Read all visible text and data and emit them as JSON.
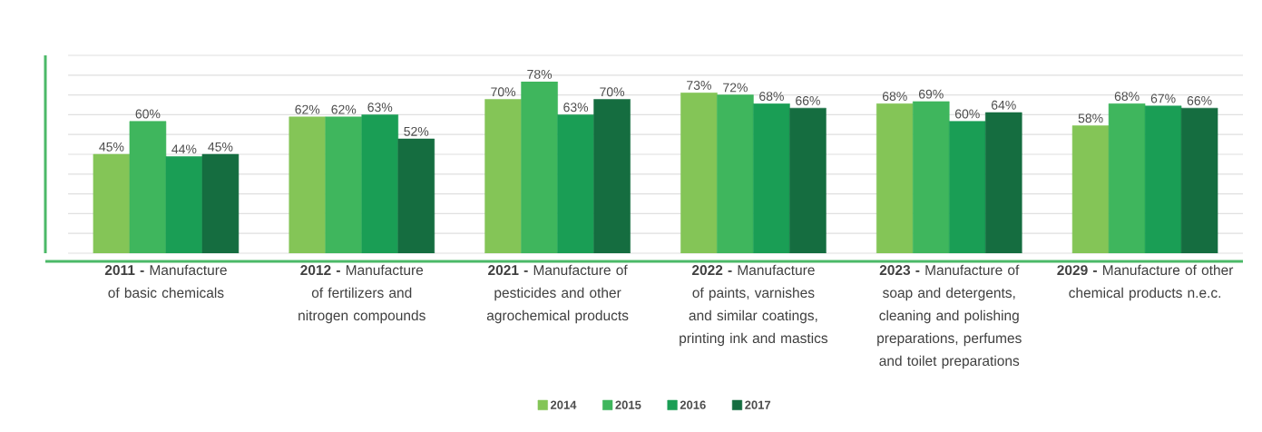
{
  "chart_data": {
    "type": "bar",
    "categories": [
      "**2011 -** Manufacture of basic chemicals",
      "**2012 -** Manufacture of fertilizers and nitrogen compounds",
      "**2021 -** Manufacture of pesticides and other agrochemical products",
      "**2022 -** Manufacture of paints, varnishes and similar coatings, printing ink and mastics",
      "**2023 -** Manufacture of soap and detergents, cleaning and polishing preparations, perfumes and toilet preparations",
      "**2029 -** Manufacture of other chemical products n.e.c."
    ],
    "series": [
      {
        "name": "2014",
        "color": "#84c557",
        "values": [
          45,
          62,
          70,
          73,
          68,
          58
        ],
        "value_labels": [
          "45%",
          "62%",
          "70%",
          "73%",
          "68%",
          "58%"
        ]
      },
      {
        "name": "2015",
        "color": "#3fb65d",
        "values": [
          60,
          62,
          78,
          72,
          69,
          68
        ],
        "value_labels": [
          "60%",
          "62%",
          "78%",
          "72%",
          "69%",
          "68%"
        ]
      },
      {
        "name": "2016",
        "color": "#1a9e55",
        "values": [
          44,
          63,
          63,
          68,
          60,
          67
        ],
        "value_labels": [
          "44%",
          "63%",
          "63%",
          "68%",
          "60%",
          "67%"
        ]
      },
      {
        "name": "2017",
        "color": "#156d40",
        "values": [
          45,
          52,
          70,
          66,
          64,
          66
        ],
        "value_labels": [
          "45%",
          "52%",
          "70%",
          "66%",
          "64%",
          "66%"
        ]
      }
    ],
    "ylim": [
      0,
      90
    ],
    "yticks": [
      {
        "value": 0,
        "label": null
      },
      {
        "value": 9,
        "label": null
      },
      {
        "value": 18,
        "label": null
      },
      {
        "value": 27,
        "label": null
      },
      {
        "value": 36,
        "label": null
      },
      {
        "value": 45,
        "label": null
      },
      {
        "value": 54,
        "label": null
      },
      {
        "value": 63,
        "label": null
      },
      {
        "value": 72,
        "label": null
      },
      {
        "value": 81,
        "label": null
      },
      {
        "value": 90,
        "label": null
      }
    ],
    "tick_labels": "x",
    "grid": "y",
    "legend": "bottom"
  }
}
